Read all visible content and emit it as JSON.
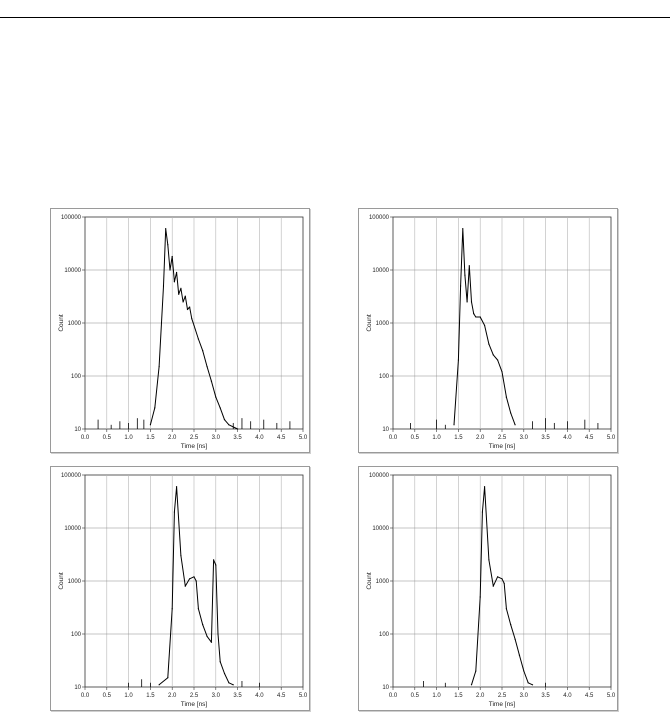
{
  "chart_data": [
    {
      "type": "line",
      "xlabel": "Time [ns]",
      "ylabel": "Count",
      "xlim": [
        0,
        5
      ],
      "ylim": [
        10,
        100000
      ],
      "yscale": "log",
      "grid": true,
      "x_ticks": [
        "0.0",
        "0.5",
        "1.0",
        "1.5",
        "2.0",
        "2.5",
        "3.0",
        "3.5",
        "4.0",
        "4.5",
        "5.0"
      ],
      "y_ticks": [
        "10",
        "100",
        "1000",
        "10000",
        "100000"
      ],
      "series": [
        {
          "x": [
            1.5,
            1.6,
            1.7,
            1.8,
            1.85,
            1.9,
            1.95,
            2.0,
            2.05,
            2.1,
            2.15,
            2.2,
            2.25,
            2.3,
            2.35,
            2.4,
            2.45,
            2.5,
            2.6,
            2.7,
            2.8,
            2.9,
            3.0,
            3.1,
            3.2,
            3.3,
            3.5
          ],
          "y": [
            12,
            25,
            150,
            5000,
            60000,
            30000,
            10000,
            18000,
            6000,
            9000,
            3500,
            4500,
            2500,
            3200,
            1800,
            2000,
            1200,
            900,
            500,
            300,
            150,
            80,
            40,
            25,
            15,
            12,
            10
          ]
        }
      ],
      "noise_x": [
        0.3,
        0.6,
        0.8,
        1.0,
        1.2,
        1.35,
        3.4,
        3.6,
        3.8,
        4.1,
        4.4,
        4.7
      ],
      "noise_y": [
        15,
        12,
        14,
        13,
        16,
        15,
        13,
        16,
        14,
        15,
        13,
        14
      ]
    },
    {
      "type": "line",
      "xlabel": "Time [ns]",
      "ylabel": "Count",
      "xlim": [
        0,
        5
      ],
      "ylim": [
        10,
        100000
      ],
      "yscale": "log",
      "grid": true,
      "x_ticks": [
        "0.0",
        "0.5",
        "1.0",
        "1.5",
        "2.0",
        "2.5",
        "3.0",
        "3.5",
        "4.0",
        "4.5",
        "5.0"
      ],
      "y_ticks": [
        "10",
        "100",
        "1000",
        "10000",
        "100000"
      ],
      "series": [
        {
          "x": [
            1.4,
            1.5,
            1.55,
            1.6,
            1.65,
            1.7,
            1.75,
            1.8,
            1.85,
            1.9,
            2.0,
            2.1,
            2.2,
            2.3,
            2.4,
            2.5,
            2.6,
            2.7,
            2.8
          ],
          "y": [
            12,
            200,
            5000,
            60000,
            8000,
            2500,
            12000,
            2500,
            1500,
            1300,
            1300,
            900,
            400,
            250,
            200,
            120,
            40,
            20,
            12
          ]
        }
      ],
      "noise_x": [
        0.4,
        1.0,
        1.2,
        3.2,
        3.5,
        3.7,
        4.0,
        4.4,
        4.7
      ],
      "noise_y": [
        13,
        15,
        12,
        14,
        16,
        13,
        14,
        15,
        13
      ]
    },
    {
      "type": "line",
      "xlabel": "Time [ns]",
      "ylabel": "Count",
      "xlim": [
        0,
        5
      ],
      "ylim": [
        10,
        100000
      ],
      "yscale": "log",
      "grid": true,
      "x_ticks": [
        "0.0",
        "0.5",
        "1.0",
        "1.5",
        "2.0",
        "2.5",
        "3.0",
        "3.5",
        "4.0",
        "4.5",
        "5.0"
      ],
      "y_ticks": [
        "10",
        "100",
        "1000",
        "10000",
        "100000"
      ],
      "series": [
        {
          "x": [
            1.7,
            1.9,
            2.0,
            2.05,
            2.1,
            2.2,
            2.3,
            2.4,
            2.5,
            2.55,
            2.6,
            2.7,
            2.8,
            2.9,
            2.95,
            3.0,
            3.05,
            3.1,
            3.2,
            3.3,
            3.4
          ],
          "y": [
            11,
            15,
            300,
            20000,
            60000,
            3000,
            800,
            1100,
            1200,
            1000,
            300,
            150,
            90,
            70,
            2500,
            2000,
            100,
            30,
            18,
            12,
            11
          ]
        }
      ],
      "noise_x": [
        1.0,
        1.3,
        1.5,
        3.6,
        4.0
      ],
      "noise_y": [
        12,
        14,
        12,
        13,
        12
      ]
    },
    {
      "type": "line",
      "xlabel": "Time [ns]",
      "ylabel": "Count",
      "xlim": [
        0,
        5
      ],
      "ylim": [
        10,
        100000
      ],
      "yscale": "log",
      "grid": true,
      "x_ticks": [
        "0.0",
        "0.5",
        "1.0",
        "1.5",
        "2.0",
        "2.5",
        "3.0",
        "3.5",
        "4.0",
        "4.5",
        "5.0"
      ],
      "y_ticks": [
        "10",
        "100",
        "1000",
        "10000",
        "100000"
      ],
      "series": [
        {
          "x": [
            1.8,
            1.9,
            2.0,
            2.05,
            2.1,
            2.2,
            2.3,
            2.4,
            2.5,
            2.55,
            2.6,
            2.7,
            2.8,
            2.9,
            3.0,
            3.1,
            3.2
          ],
          "y": [
            11,
            20,
            500,
            20000,
            60000,
            2500,
            800,
            1200,
            1100,
            900,
            300,
            150,
            80,
            40,
            20,
            12,
            11
          ]
        }
      ],
      "noise_x": [
        0.7,
        1.2,
        3.5
      ],
      "noise_y": [
        13,
        12,
        12
      ]
    }
  ]
}
